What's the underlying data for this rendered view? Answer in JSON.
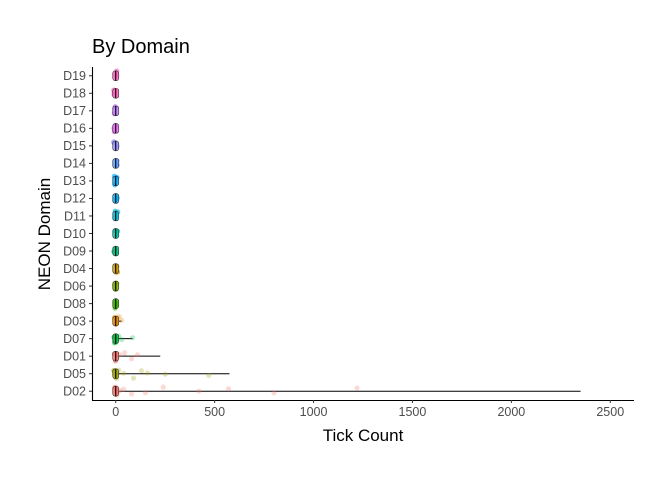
{
  "chart_data": {
    "type": "boxplot-jitter",
    "title": "By Domain",
    "xlabel": "Tick Count",
    "ylabel": "NEON Domain",
    "xlim": [
      -120,
      2620
    ],
    "x_ticks": [
      0,
      500,
      1000,
      1500,
      2000,
      2500
    ],
    "grid": false,
    "legend": "none",
    "categories": [
      "D02",
      "D05",
      "D01",
      "D07",
      "D03",
      "D08",
      "D06",
      "D04",
      "D09",
      "D10",
      "D11",
      "D12",
      "D13",
      "D14",
      "D15",
      "D16",
      "D17",
      "D18",
      "D19"
    ],
    "colors": {
      "D02": "#F8766D",
      "D05": "#A3A500",
      "D01": "#F8766D",
      "D07": "#00BA38",
      "D03": "#E58700",
      "D08": "#39B600",
      "D06": "#7CAE00",
      "D04": "#C99800",
      "D09": "#00BF7D",
      "D10": "#00C1A3",
      "D11": "#00BCD8",
      "D12": "#00B0F6",
      "D13": "#00A9FF",
      "D14": "#619CFF",
      "D15": "#9590FF",
      "D16": "#E76BF3",
      "D17": "#C77CFF",
      "D18": "#FF62BC",
      "D19": "#FF61C3"
    },
    "series": [
      {
        "domain": "D02",
        "whisker_max": 2350,
        "points": [
          0,
          0,
          0,
          2,
          5,
          10,
          20,
          40,
          80,
          150,
          240,
          420,
          570,
          800,
          1220
        ]
      },
      {
        "domain": "D05",
        "whisker_max": 575,
        "points": [
          0,
          0,
          1,
          5,
          15,
          40,
          90,
          130,
          160,
          250,
          470
        ]
      },
      {
        "domain": "D01",
        "whisker_max": 225,
        "points": [
          0,
          0,
          2,
          8,
          20,
          45,
          80,
          110
        ]
      },
      {
        "domain": "D07",
        "whisker_max": 85,
        "points": [
          0,
          0,
          1,
          6,
          15,
          30,
          85
        ]
      },
      {
        "domain": "D03",
        "whisker_max": 30,
        "points": [
          0,
          0,
          2,
          8,
          18,
          30
        ]
      },
      {
        "domain": "D08",
        "whisker_max": 0,
        "points": [
          0,
          0,
          0,
          1
        ]
      },
      {
        "domain": "D06",
        "whisker_max": 0,
        "points": [
          0,
          0,
          0,
          1
        ]
      },
      {
        "domain": "D04",
        "whisker_max": 0,
        "points": [
          0,
          0,
          1,
          3
        ]
      },
      {
        "domain": "D09",
        "whisker_max": 0,
        "points": [
          0,
          0,
          0
        ]
      },
      {
        "domain": "D10",
        "whisker_max": 0,
        "points": [
          0,
          0,
          0
        ]
      },
      {
        "domain": "D11",
        "whisker_max": 0,
        "points": [
          0,
          0,
          0
        ]
      },
      {
        "domain": "D12",
        "whisker_max": 0,
        "points": [
          0,
          0
        ]
      },
      {
        "domain": "D13",
        "whisker_max": 0,
        "points": [
          0,
          0,
          0
        ]
      },
      {
        "domain": "D14",
        "whisker_max": 0,
        "points": [
          0,
          0,
          0
        ]
      },
      {
        "domain": "D15",
        "whisker_max": 0,
        "points": [
          0,
          0,
          0
        ]
      },
      {
        "domain": "D16",
        "whisker_max": 0,
        "points": [
          0,
          0,
          0
        ]
      },
      {
        "domain": "D17",
        "whisker_max": 0,
        "points": [
          0,
          0,
          0
        ]
      },
      {
        "domain": "D18",
        "whisker_max": 0,
        "points": [
          0,
          0,
          0
        ]
      },
      {
        "domain": "D19",
        "whisker_max": 0,
        "points": [
          0,
          0,
          0
        ]
      }
    ]
  }
}
